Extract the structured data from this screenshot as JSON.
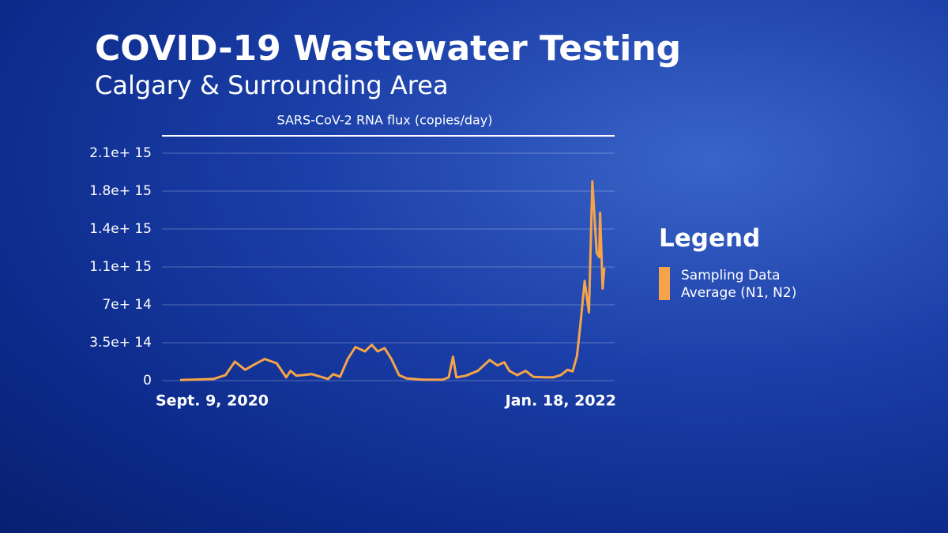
{
  "chart_data": {
    "type": "line",
    "title": "COVID-19 Wastewater Testing",
    "subtitle": "Calgary & Surrounding Area",
    "y_label": "SARS-CoV-2 RNA flux (copies/day)",
    "legend_title": "Legend",
    "x": [
      "2020-09-09",
      "2020-09-29",
      "2020-10-18",
      "2020-11-01",
      "2020-11-12",
      "2020-11-24",
      "2020-12-05",
      "2020-12-17",
      "2020-12-31",
      "2021-01-11",
      "2021-01-16",
      "2021-01-23",
      "2021-02-10",
      "2021-03-01",
      "2021-03-07",
      "2021-03-15",
      "2021-03-24",
      "2021-04-02",
      "2021-04-13",
      "2021-04-21",
      "2021-04-28",
      "2021-05-06",
      "2021-05-14",
      "2021-05-23",
      "2021-06-01",
      "2021-06-20",
      "2021-07-13",
      "2021-07-20",
      "2021-07-25",
      "2021-07-29",
      "2021-08-09",
      "2021-08-23",
      "2021-09-06",
      "2021-09-15",
      "2021-09-23",
      "2021-09-29",
      "2021-10-08",
      "2021-10-18",
      "2021-10-27",
      "2021-11-10",
      "2021-11-19",
      "2021-11-28",
      "2021-12-06",
      "2021-12-12",
      "2021-12-17",
      "2021-12-21",
      "2021-12-26",
      "2021-12-31",
      "2022-01-04",
      "2022-01-09",
      "2022-01-12",
      "2022-01-13",
      "2022-01-16",
      "2022-01-18"
    ],
    "series": [
      {
        "name": "Sampling Data Average (N1, N2)",
        "color": "#f7a449",
        "values": [
          5000000000000.0,
          10000000000000.0,
          15000000000000.0,
          50000000000000.0,
          175000000000000.0,
          100000000000000.0,
          150000000000000.0,
          200000000000000.0,
          160000000000000.0,
          30000000000000.0,
          90000000000000.0,
          45000000000000.0,
          60000000000000.0,
          15000000000000.0,
          60000000000000.0,
          35000000000000.0,
          200000000000000.0,
          310000000000000.0,
          270000000000000.0,
          330000000000000.0,
          270000000000000.0,
          300000000000000.0,
          200000000000000.0,
          50000000000000.0,
          20000000000000.0,
          8000000000000.0,
          8000000000000.0,
          30000000000000.0,
          220000000000000.0,
          30000000000000.0,
          45000000000000.0,
          90000000000000.0,
          190000000000000.0,
          140000000000000.0,
          170000000000000.0,
          90000000000000.0,
          50000000000000.0,
          90000000000000.0,
          35000000000000.0,
          30000000000000.0,
          30000000000000.0,
          50000000000000.0,
          100000000000000.0,
          85000000000000.0,
          230000000000000.0,
          520000000000000.0,
          920000000000000.0,
          630000000000000.0,
          1840000000000000.0,
          1180000000000000.0,
          1140000000000000.0,
          1550000000000000.0,
          850000000000000.0,
          1040000000000000.0
        ]
      }
    ],
    "xlim": [
      "2020-09-09",
      "2022-01-18"
    ],
    "xticks": [
      {
        "value": "2020-09-09",
        "label": "Sept. 9, 2020"
      },
      {
        "value": "2022-01-18",
        "label": "Jan. 18, 2022"
      }
    ],
    "ylim": [
      0,
      2260000000000000.0
    ],
    "yticks": [
      0,
      {
        "value": 350000000000000.0,
        "label": "3.5e+ 14"
      },
      {
        "value": 700000000000000.0,
        "label": "7e+ 14"
      },
      {
        "value": 1050000000000000.0,
        "label": "1.1e+ 15"
      },
      {
        "value": 1400000000000000.0,
        "label": "1.4e+ 15"
      },
      {
        "value": 1750000000000000.0,
        "label": "1.8e+ 15"
      },
      {
        "value": 2100000000000000.0,
        "label": "2.1e+ 15"
      }
    ],
    "grid": true
  }
}
